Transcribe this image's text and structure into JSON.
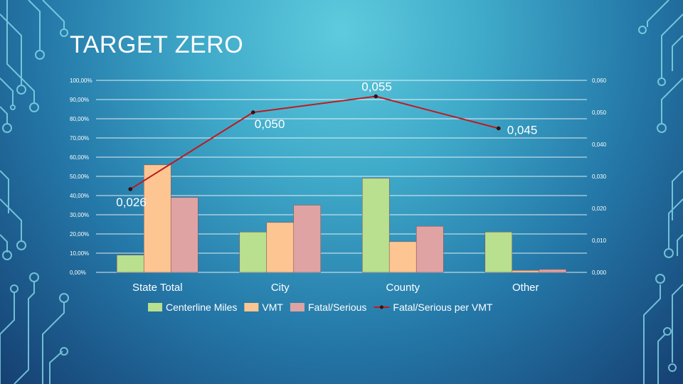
{
  "slide": {
    "title": "TARGET ZERO"
  },
  "chart_data": {
    "type": "bar",
    "categories": [
      "State Total",
      "City",
      "County",
      "Other"
    ],
    "series": [
      {
        "name": "Centerline Miles",
        "type": "bar",
        "axis": "left",
        "color": "#b8e08e",
        "values": [
          0.09,
          0.21,
          0.49,
          0.21
        ]
      },
      {
        "name": "VMT",
        "type": "bar",
        "axis": "left",
        "color": "#fcc592",
        "values": [
          0.56,
          0.26,
          0.16,
          0.01
        ]
      },
      {
        "name": "Fatal/Serious",
        "type": "bar",
        "axis": "left",
        "color": "#e0a3a3",
        "values": [
          0.39,
          0.35,
          0.24,
          0.015
        ]
      },
      {
        "name": "Fatal/Serious per VMT",
        "type": "line",
        "axis": "right",
        "color": "#c0191f",
        "values": [
          0.026,
          0.05,
          0.055,
          0.045
        ],
        "labels": [
          "0,026",
          "0,050",
          "0,055",
          "0,045"
        ]
      }
    ],
    "y_left": {
      "min": 0,
      "max": 1,
      "step": 0.1,
      "tick_labels": [
        "0,00%",
        "10,00%",
        "20,00%",
        "30,00%",
        "40,00%",
        "50,00%",
        "60,00%",
        "70,00%",
        "80,00%",
        "90,00%",
        "100,00%"
      ]
    },
    "y_right": {
      "min": 0,
      "max": 0.06,
      "step": 0.01,
      "tick_labels": [
        "0,000",
        "0,010",
        "0,020",
        "0,030",
        "0,040",
        "0,050",
        "0,060"
      ]
    },
    "grid": true,
    "legend_position": "bottom"
  }
}
